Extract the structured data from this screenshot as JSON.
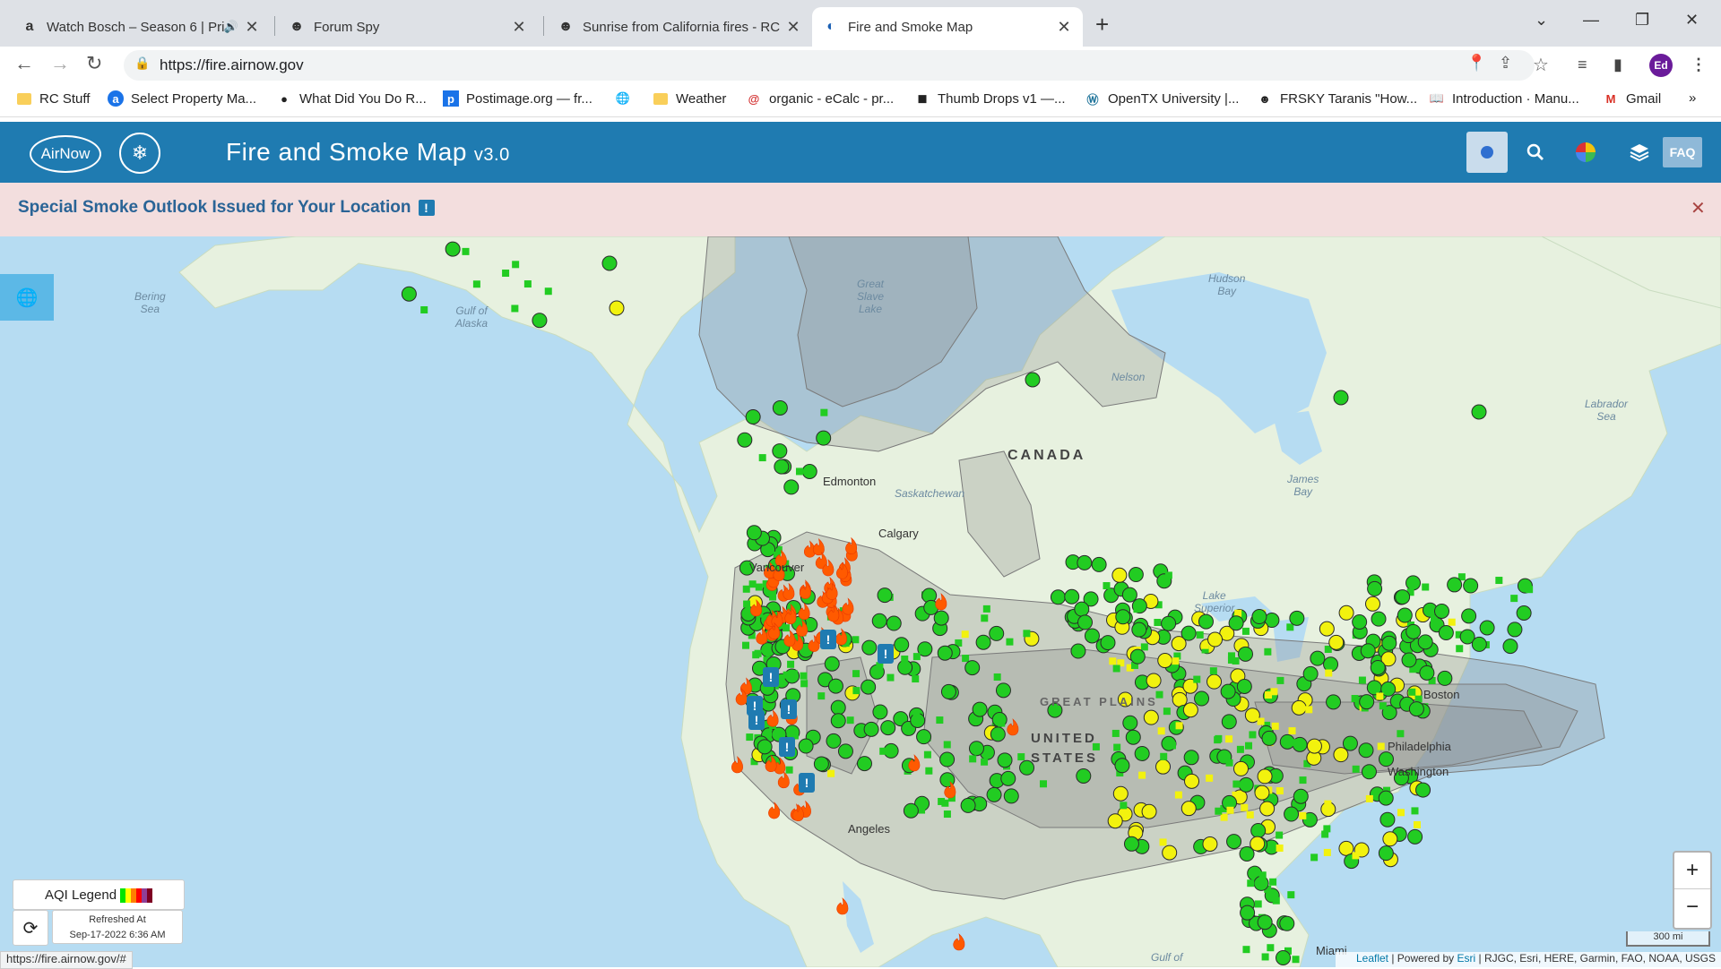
{
  "browser": {
    "tabs": [
      {
        "title": "Watch Bosch – Season 6 | Pri",
        "favicon": "amazon-icon",
        "glyph": "a",
        "audio": true,
        "active": false
      },
      {
        "title": "Forum Spy",
        "favicon": "forum-icon",
        "glyph": "☻",
        "audio": false,
        "active": false
      },
      {
        "title": "Sunrise from California fires - RC",
        "favicon": "forum-icon",
        "glyph": "☻",
        "audio": false,
        "active": false
      },
      {
        "title": "Fire and Smoke Map",
        "favicon": "airnow-icon",
        "glyph": "◐",
        "audio": false,
        "active": true
      }
    ],
    "url": "https://fire.airnow.gov",
    "profile_initials": "Ed",
    "bookmarks": [
      {
        "label": "RC Stuff",
        "icon": "folder-icon"
      },
      {
        "label": "Select Property Ma...",
        "icon": "site-icon"
      },
      {
        "label": "What Did You Do R...",
        "icon": "dot-icon"
      },
      {
        "label": "Postimage.org — fr...",
        "icon": "postimage-icon"
      },
      {
        "label": "",
        "icon": "globe-icon"
      },
      {
        "label": "Weather",
        "icon": "folder-icon"
      },
      {
        "label": "organic - eCalc - pr...",
        "icon": "ecalc-icon"
      },
      {
        "label": "Thumb Drops v1 —...",
        "icon": "cube-icon"
      },
      {
        "label": "OpenTX University |...",
        "icon": "wordpress-icon"
      },
      {
        "label": "FRSKY Taranis \"How...",
        "icon": "forum-icon"
      },
      {
        "label": "Introduction · Manu...",
        "icon": "book-icon"
      },
      {
        "label": "Gmail",
        "icon": "gmail-icon"
      }
    ],
    "status_url": "https://fire.airnow.gov/#"
  },
  "app": {
    "logo_text": "AirNow",
    "title": "Fire and Smoke Map",
    "version": "v3.0",
    "faq_label": "FAQ",
    "alert": "Special Smoke Outlook Issued for Your Location",
    "alert_badge": "!"
  },
  "map": {
    "water_labels": [
      {
        "text": "Bering\nSea"
      },
      {
        "text": "Gulf of\nAlaska"
      },
      {
        "text": "Hudson\nBay"
      },
      {
        "text": "James\nBay"
      },
      {
        "text": "Labrador\nSea"
      },
      {
        "text": "Great\nSlave\nLake"
      },
      {
        "text": "Lake\nSuperior"
      },
      {
        "text": "Gulf of"
      }
    ],
    "place_labels": [
      "Edmonton",
      "Calgary",
      "Vancouver",
      "Angeles",
      "Philadelphia",
      "Boston",
      "Washington",
      "Miami",
      "Nelson",
      "Saskatchewan"
    ],
    "country_labels": [
      "CANADA",
      "UNITED STATES",
      "GREAT PLAINS"
    ],
    "legend_label": "AQI Legend",
    "legend_colors": [
      "#00e400",
      "#ffff00",
      "#ff7e00",
      "#ff0000",
      "#8f3f97",
      "#7e0023"
    ],
    "refreshed_label": "Refreshed At",
    "refreshed_time": "Sep-17-2022 6:36 AM",
    "scale_label": "300 mi",
    "attribution": {
      "leaflet": "Leaflet",
      "powered": " | Powered by ",
      "esri": "Esri",
      "rest": " | RJGC, Esri, HERE, Garmin, FAO, NOAA, USGS"
    },
    "zoom_in": "+",
    "zoom_out": "−",
    "colors": {
      "ocean": "#b6dcf2",
      "land": "#e7f1df",
      "smoke": "#8a8a8a",
      "good": "#22cc22",
      "moderate": "#f2f20e",
      "fire": "#ff5a00"
    }
  }
}
